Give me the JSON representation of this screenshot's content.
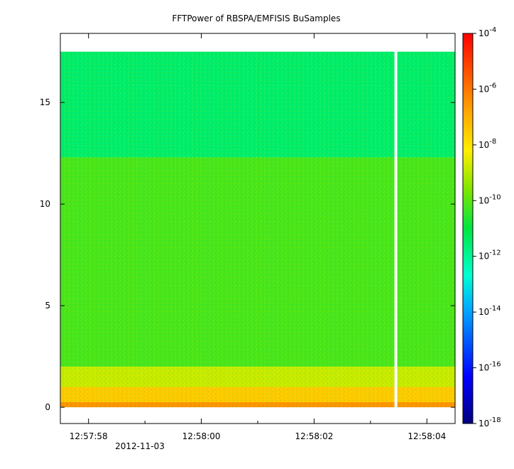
{
  "chart_data": {
    "type": "heatmap",
    "title": "FFTPower of RBSPA/EMFISIS  BuSamples",
    "xlabel": "",
    "ylabel": "",
    "x_tick_labels": [
      "12:57:58",
      "12:58:00",
      "12:58:02",
      "12:58:04"
    ],
    "x_date_label": "2012-11-03",
    "y_ticks": [
      0,
      5,
      10,
      15
    ],
    "ylim": [
      -0.8,
      18.4
    ],
    "xlim_seconds": [
      -0.5,
      6.5
    ],
    "data_x_range": [
      -0.5,
      6.5
    ],
    "data_y_range": [
      0,
      17.5
    ],
    "data_gap_at_second": 5.45,
    "colorbar": {
      "scale": "log",
      "range": [
        1e-18,
        0.0001
      ],
      "tick_exponents": [
        -18,
        -16,
        -14,
        -12,
        -10,
        -8,
        -6,
        -4
      ]
    },
    "bands": [
      {
        "y_range": [
          0,
          0.25
        ],
        "log10_power": -6.5
      },
      {
        "y_range": [
          0.25,
          1.0
        ],
        "log10_power": -7.5
      },
      {
        "y_range": [
          1.0,
          2.0
        ],
        "log10_power": -8.8
      },
      {
        "y_range": [
          2.0,
          12.3
        ],
        "log10_power": -10.2
      },
      {
        "y_range": [
          12.3,
          17.5
        ],
        "log10_power": -11.5
      }
    ],
    "grid": false
  }
}
